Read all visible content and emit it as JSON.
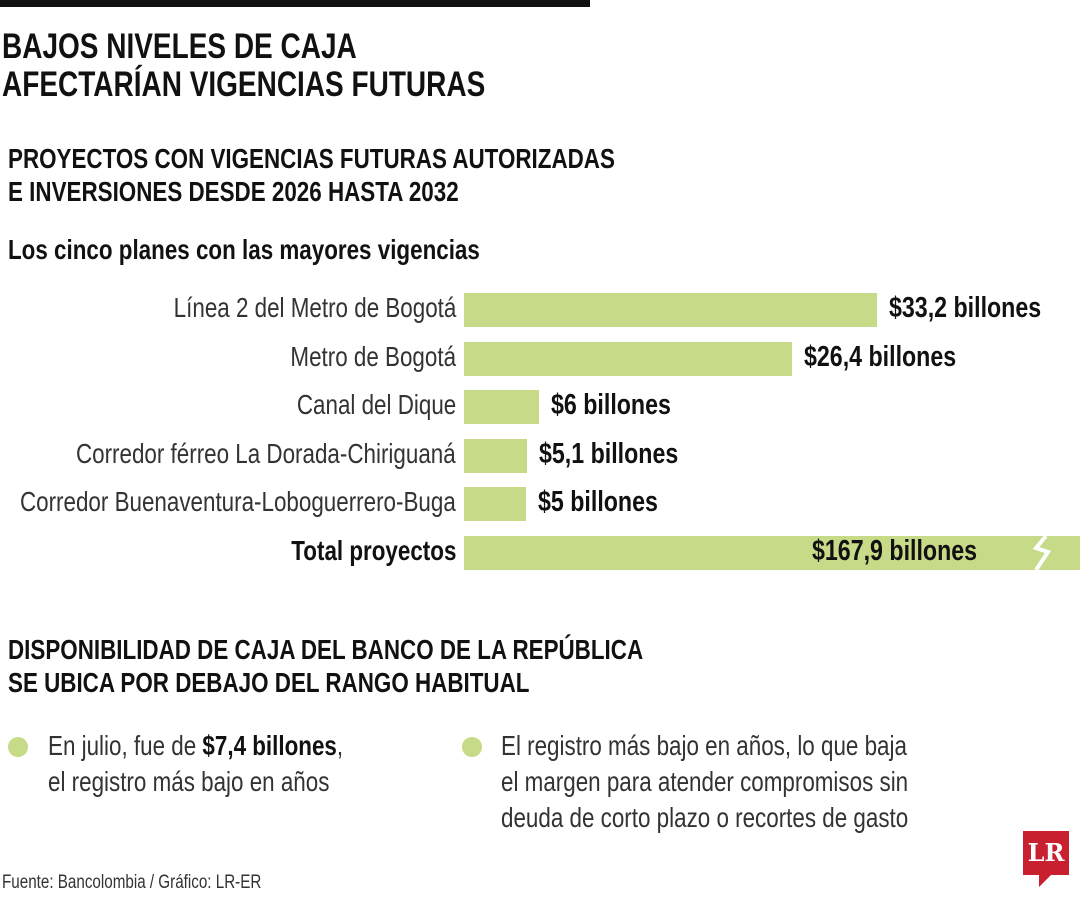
{
  "title_lines": [
    "BAJOS NIVELES DE CAJA",
    "AFECTARÍAN VIGENCIAS FUTURAS"
  ],
  "section1": {
    "heading_lines": [
      "PROYECTOS CON VIGENCIAS FUTURAS AUTORIZADAS",
      "E INVERSIONES DESDE 2026 HASTA 2032"
    ],
    "subtitle": "Los cinco planes con las mayores vigencias"
  },
  "chart_data": {
    "type": "bar",
    "orientation": "horizontal",
    "title": "Los cinco planes con las mayores vigencias",
    "categories": [
      "Línea 2 del Metro de Bogotá",
      "Metro de Bogotá",
      "Canal del Dique",
      "Corredor férreo La Dorada-Chiriguaná",
      "Corredor Buenaventura-Loboguerrero-Buga"
    ],
    "values": [
      33.2,
      26.4,
      6,
      5.1,
      5
    ],
    "labels": [
      "$33,2 billones",
      "$26,4 billones",
      "$6 billones",
      "$5,1 billones",
      "$5 billones"
    ],
    "unit": "billones de pesos",
    "total": {
      "label": "Total proyectos",
      "value": 167.9,
      "value_label": "$167,9 billones",
      "bar_broken": true
    },
    "bar_color": "#c6da88",
    "grid": false
  },
  "section2": {
    "heading_lines": [
      "DISPONIBILIDAD DE CAJA DEL BANCO DE LA REPÚBLICA",
      "SE UBICA POR DEBAJO DEL RANGO HABITUAL"
    ],
    "bullet1": {
      "pre": "En julio, fue de ",
      "bold": "$7,4 billones",
      "post": ",",
      "line2": "el registro más bajo en años"
    },
    "bullet2": [
      "El registro más bajo en años, lo que baja",
      "el margen para atender compromisos sin",
      "deuda de corto plazo o recortes de gasto"
    ]
  },
  "source": "Fuente: Bancolombia / Gráfico: LR-ER",
  "logo": "LR",
  "colors": {
    "accent": "#c6da88",
    "logo": "#c8202f"
  }
}
